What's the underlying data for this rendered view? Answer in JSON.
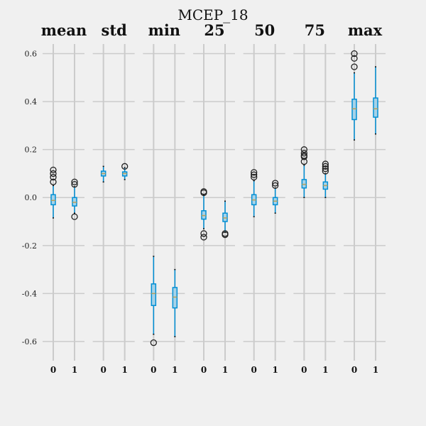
{
  "chart_data": {
    "type": "boxplot",
    "title": "MCEP_18",
    "ylim": [
      -0.68,
      0.64
    ],
    "yticks": [
      0.6,
      0.4,
      0.2,
      0.0,
      -0.2,
      -0.4,
      -0.6
    ],
    "ytick_labels": [
      "0.6",
      "0.4",
      "0.2",
      "0.0",
      "-0.2",
      "-0.4",
      "-0.6"
    ],
    "grid": true,
    "panels": [
      {
        "title": "mean",
        "categories": [
          "0",
          "1"
        ],
        "boxes": [
          {
            "whisker_low": -0.085,
            "q1": -0.03,
            "median": -0.012,
            "q3": 0.012,
            "whisker_high": 0.05,
            "outliers": [
              0.065,
              0.085,
              0.1,
              0.115
            ]
          },
          {
            "whisker_low": -0.065,
            "q1": -0.035,
            "median": -0.02,
            "q3": 0.0,
            "whisker_high": 0.045,
            "outliers": [
              -0.08,
              0.055,
              0.065
            ]
          }
        ]
      },
      {
        "title": "std",
        "categories": [
          "0",
          "1"
        ],
        "boxes": [
          {
            "whisker_low": 0.065,
            "q1": 0.09,
            "median": 0.1,
            "q3": 0.11,
            "whisker_high": 0.13,
            "outliers": []
          },
          {
            "whisker_low": 0.075,
            "q1": 0.09,
            "median": 0.1,
            "q3": 0.107,
            "whisker_high": 0.125,
            "outliers": [
              0.13
            ]
          }
        ]
      },
      {
        "title": "min",
        "categories": [
          "0",
          "1"
        ],
        "boxes": [
          {
            "whisker_low": -0.57,
            "q1": -0.45,
            "median": -0.4,
            "q3": -0.36,
            "whisker_high": -0.245,
            "outliers": [
              -0.605
            ]
          },
          {
            "whisker_low": -0.58,
            "q1": -0.46,
            "median": -0.415,
            "q3": -0.375,
            "whisker_high": -0.3,
            "outliers": []
          }
        ]
      },
      {
        "title": "25",
        "categories": [
          "0",
          "1"
        ],
        "boxes": [
          {
            "whisker_low": -0.13,
            "q1": -0.09,
            "median": -0.075,
            "q3": -0.055,
            "whisker_high": 0.01,
            "outliers": [
              -0.165,
              -0.15,
              0.02,
              0.025
            ]
          },
          {
            "whisker_low": -0.145,
            "q1": -0.1,
            "median": -0.085,
            "q3": -0.065,
            "whisker_high": -0.015,
            "outliers": [
              -0.155,
              -0.15
            ]
          }
        ]
      },
      {
        "title": "50",
        "categories": [
          "0",
          "1"
        ],
        "boxes": [
          {
            "whisker_low": -0.08,
            "q1": -0.03,
            "median": -0.01,
            "q3": 0.012,
            "whisker_high": 0.07,
            "outliers": [
              0.085,
              0.095,
              0.105
            ]
          },
          {
            "whisker_low": -0.065,
            "q1": -0.03,
            "median": -0.015,
            "q3": 0.0,
            "whisker_high": 0.04,
            "outliers": [
              0.05,
              0.06
            ]
          }
        ]
      },
      {
        "title": "75",
        "categories": [
          "0",
          "1"
        ],
        "boxes": [
          {
            "whisker_low": 0.0,
            "q1": 0.04,
            "median": 0.055,
            "q3": 0.075,
            "whisker_high": 0.135,
            "outliers": [
              0.15,
              0.17,
              0.175,
              0.185,
              0.2
            ]
          },
          {
            "whisker_low": 0.0,
            "q1": 0.035,
            "median": 0.05,
            "q3": 0.065,
            "whisker_high": 0.1,
            "outliers": [
              0.11,
              0.12,
              0.13,
              0.14
            ]
          }
        ]
      },
      {
        "title": "max",
        "categories": [
          "0",
          "1"
        ],
        "boxes": [
          {
            "whisker_low": 0.24,
            "q1": 0.325,
            "median": 0.37,
            "q3": 0.41,
            "whisker_high": 0.52,
            "outliers": [
              0.545,
              0.58,
              0.6
            ]
          },
          {
            "whisker_low": 0.265,
            "q1": 0.335,
            "median": 0.37,
            "q3": 0.415,
            "whisker_high": 0.545,
            "outliers": []
          }
        ]
      }
    ]
  },
  "colors": {
    "background": "#f0f0f0",
    "grid": "#cbcbcb",
    "box": "#008fd5",
    "box_fill": "#a6d2e8",
    "median": "#b8a05a",
    "outlier": "#222222"
  }
}
